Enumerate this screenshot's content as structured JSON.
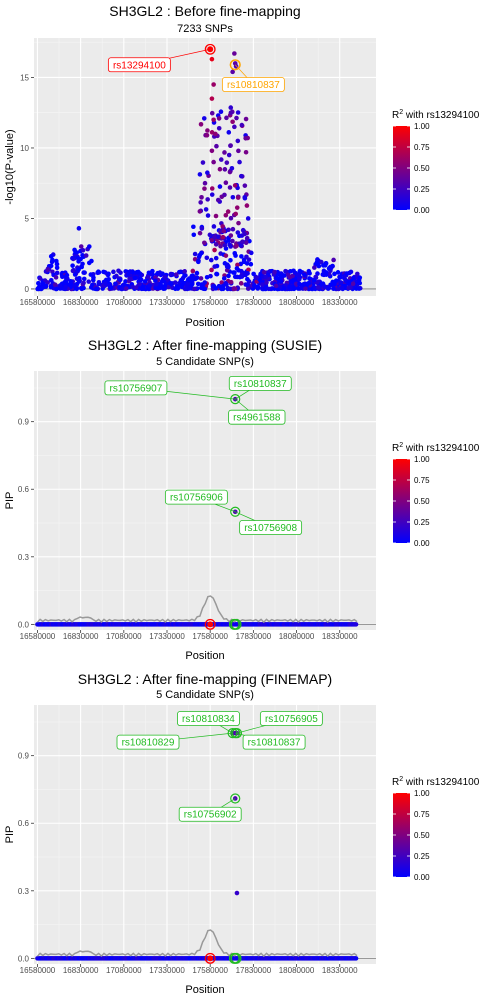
{
  "chart_data": [
    {
      "type": "scatter",
      "title": "SH3GL2 : Before fine-mapping",
      "subtitle": "7233 SNPs",
      "xlabel": "Position",
      "ylabel": "-log10(P-value)",
      "xlim": [
        16560000,
        18540000
      ],
      "ylim": [
        -0.5,
        17.8
      ],
      "xticks": [
        16580000,
        16830000,
        17080000,
        17330000,
        17580000,
        17830000,
        18080000,
        18330000
      ],
      "yticks": [
        0,
        5,
        10,
        15
      ],
      "legend": {
        "title_sup": "2",
        "title_pre": "R",
        "title": " with rs13294100",
        "ticks": [
          "1.00",
          "0.75",
          "0.50",
          "0.25",
          "0.00"
        ],
        "placement": "right"
      },
      "colors": {
        "low": "#0000ff",
        "high": "#ff0000"
      },
      "points": [
        {
          "x": 17580000,
          "y": 17.0,
          "r2": 1.0
        },
        {
          "x": 17590000,
          "y": 16.3,
          "r2": 0.9
        },
        {
          "x": 17720000,
          "y": 16.7,
          "r2": 0.4
        },
        {
          "x": 17725000,
          "y": 16.0,
          "r2": 0.35
        },
        {
          "x": 17730000,
          "y": 15.8,
          "r2": 0.3
        },
        {
          "x": 17710000,
          "y": 15.4,
          "r2": 0.35
        },
        {
          "x": 17600000,
          "y": 14.5,
          "r2": 0.6
        },
        {
          "x": 17590000,
          "y": 13.5,
          "r2": 0.7
        },
        {
          "x": 17600000,
          "y": 12.0,
          "r2": 0.6
        },
        {
          "x": 17610000,
          "y": 11.0,
          "r2": 0.55
        },
        {
          "x": 17590000,
          "y": 9.8,
          "r2": 0.5
        },
        {
          "x": 17600000,
          "y": 9.0,
          "r2": 0.45
        },
        {
          "x": 17700000,
          "y": 12.5,
          "r2": 0.3
        },
        {
          "x": 17720000,
          "y": 11.5,
          "r2": 0.25
        },
        {
          "x": 17740000,
          "y": 10.5,
          "r2": 0.2
        },
        {
          "x": 17750000,
          "y": 9.0,
          "r2": 0.15
        },
        {
          "x": 17760000,
          "y": 8.0,
          "r2": 0.15
        },
        {
          "x": 17690000,
          "y": 9.5,
          "r2": 0.2
        },
        {
          "x": 17530000,
          "y": 6.5,
          "r2": 0.4
        },
        {
          "x": 17520000,
          "y": 5.5,
          "r2": 0.45
        },
        {
          "x": 17550000,
          "y": 7.5,
          "r2": 0.35
        },
        {
          "x": 17780000,
          "y": 6.5,
          "r2": 0.1
        },
        {
          "x": 17800000,
          "y": 5.0,
          "r2": 0.1
        },
        {
          "x": 16820000,
          "y": 4.3,
          "r2": 0.05
        }
      ],
      "highlights": [
        {
          "x": 17580000,
          "y": 17.0,
          "label": "rs13294100",
          "color": "#ff0000",
          "label_pos": "left"
        },
        {
          "x": 17725000,
          "y": 15.9,
          "label": "rs10810837",
          "color": "#ffa500",
          "label_pos": "below"
        }
      ]
    },
    {
      "type": "scatter",
      "title": "SH3GL2 : After fine-mapping (SUSIE)",
      "subtitle": "5 Candidate SNP(s)",
      "xlabel": "Position",
      "ylabel": "PIP",
      "xlim": [
        16560000,
        18540000
      ],
      "ylim": [
        -0.025,
        1.125
      ],
      "xticks": [
        16580000,
        16830000,
        17080000,
        17330000,
        17580000,
        17830000,
        18080000,
        18330000
      ],
      "yticks": [
        0.0,
        0.3,
        0.6,
        0.9
      ],
      "ytick_labels": [
        "0.0",
        "0.3",
        "0.6",
        "0.9"
      ],
      "legend": {
        "title_sup": "2",
        "title_pre": "R",
        "title": " with rs13294100",
        "ticks": [
          "1.00",
          "0.75",
          "0.50",
          "0.25",
          "0.00"
        ],
        "placement": "right"
      },
      "points": [
        {
          "x": 17725000,
          "y": 1.0,
          "r2": 0.3
        },
        {
          "x": 17725000,
          "y": 0.5,
          "r2": 0.3
        }
      ],
      "highlights": [
        {
          "x": 17580000,
          "y": 0.0,
          "label": "",
          "color": "#ff0000"
        },
        {
          "x": 17720000,
          "y": 0.0,
          "label": "",
          "color": "#22bb22"
        },
        {
          "x": 17730000,
          "y": 0.0,
          "label": "",
          "color": "#22bb22"
        }
      ],
      "labels": [
        {
          "text": "rs10756907",
          "x": 17150000,
          "y": 1.05
        },
        {
          "text": "rs10810837",
          "x": 17870000,
          "y": 1.07
        },
        {
          "text": "rs4961588",
          "x": 17850000,
          "y": 0.92
        },
        {
          "text": "rs10756906",
          "x": 17500000,
          "y": 0.565
        },
        {
          "text": "rs10756908",
          "x": 17930000,
          "y": 0.43
        }
      ],
      "label_targets": [
        {
          "x": 17725000,
          "y": 1.0
        },
        {
          "x": 17725000,
          "y": 1.0
        },
        {
          "x": 17725000,
          "y": 1.0
        },
        {
          "x": 17725000,
          "y": 0.5
        },
        {
          "x": 17725000,
          "y": 0.5
        }
      ],
      "label_color": "#22bb22"
    },
    {
      "type": "scatter",
      "title": "SH3GL2 : After fine-mapping (FINEMAP)",
      "subtitle": "5 Candidate SNP(s)",
      "xlabel": "Position",
      "ylabel": "PIP",
      "xlim": [
        16560000,
        18540000
      ],
      "ylim": [
        -0.025,
        1.125
      ],
      "xticks": [
        16580000,
        16830000,
        17080000,
        17330000,
        17580000,
        17830000,
        18080000,
        18330000
      ],
      "yticks": [
        0.0,
        0.3,
        0.6,
        0.9
      ],
      "ytick_labels": [
        "0.0",
        "0.3",
        "0.6",
        "0.9"
      ],
      "legend": {
        "title_sup": "2",
        "title_pre": "R",
        "title": " with rs13294100",
        "ticks": [
          "1.00",
          "0.75",
          "0.50",
          "0.25",
          "0.00"
        ],
        "placement": "right"
      },
      "points": [
        {
          "x": 17710000,
          "y": 1.0,
          "r2": 0.3
        },
        {
          "x": 17725000,
          "y": 1.0,
          "r2": 0.3
        },
        {
          "x": 17735000,
          "y": 1.0,
          "r2": 0.3
        },
        {
          "x": 17725000,
          "y": 0.71,
          "r2": 0.3
        },
        {
          "x": 17735000,
          "y": 0.29,
          "r2": 0.2
        }
      ],
      "highlights": [
        {
          "x": 17580000,
          "y": 0.0,
          "label": "",
          "color": "#ff0000"
        },
        {
          "x": 17720000,
          "y": 0.0,
          "label": "",
          "color": "#22bb22"
        },
        {
          "x": 17730000,
          "y": 0.0,
          "label": "",
          "color": "#22bb22"
        }
      ],
      "labels": [
        {
          "text": "rs10810834",
          "x": 17570000,
          "y": 1.065
        },
        {
          "text": "rs10756905",
          "x": 18050000,
          "y": 1.065
        },
        {
          "text": "rs10810829",
          "x": 17220000,
          "y": 0.96
        },
        {
          "text": "rs10810837",
          "x": 17950000,
          "y": 0.96
        },
        {
          "text": "rs10756902",
          "x": 17580000,
          "y": 0.64
        }
      ],
      "label_targets": [
        {
          "x": 17710000,
          "y": 1.0
        },
        {
          "x": 17735000,
          "y": 1.0
        },
        {
          "x": 17710000,
          "y": 1.0
        },
        {
          "x": 17725000,
          "y": 1.0
        },
        {
          "x": 17725000,
          "y": 0.71
        }
      ],
      "label_color": "#22bb22"
    }
  ]
}
